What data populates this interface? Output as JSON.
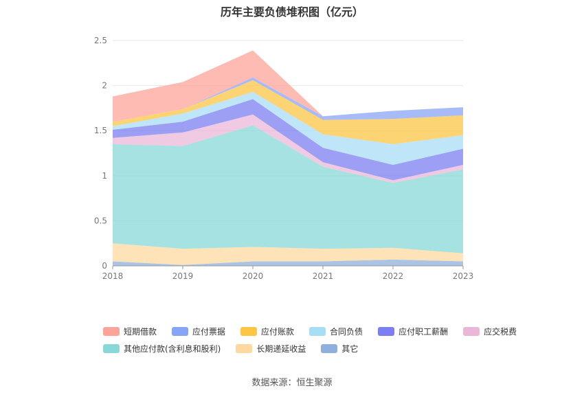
{
  "chart_data": {
    "type": "area",
    "title": "历年主要负债堆积图（亿元）",
    "stacked": true,
    "x": [
      "2018",
      "2019",
      "2020",
      "2021",
      "2022",
      "2023"
    ],
    "ylim": [
      0,
      2.5
    ],
    "yticks": [
      "0",
      "0.5",
      "1",
      "1.5",
      "2",
      "2.5"
    ],
    "grid": true,
    "legend_position": "bottom",
    "series": [
      {
        "name": "其它",
        "color": "#8fb0dc",
        "values": [
          0.05,
          0.01,
          0.05,
          0.05,
          0.07,
          0.05
        ]
      },
      {
        "name": "长期递延收益",
        "color": "#fdd9a0",
        "values": [
          0.2,
          0.18,
          0.16,
          0.14,
          0.13,
          0.09
        ]
      },
      {
        "name": "其他应付款(含利息和股利)",
        "color": "#88d8d8",
        "values": [
          1.1,
          1.14,
          1.35,
          0.91,
          0.72,
          0.93
        ]
      },
      {
        "name": "应交税费",
        "color": "#ebb7d8",
        "values": [
          0.07,
          0.15,
          0.12,
          0.05,
          0.03,
          0.05
        ]
      },
      {
        "name": "应付职工薪酬",
        "color": "#7b7ff0",
        "values": [
          0.09,
          0.12,
          0.17,
          0.16,
          0.17,
          0.18
        ]
      },
      {
        "name": "合同负债",
        "color": "#a8ddf6",
        "values": [
          0.04,
          0.09,
          0.08,
          0.15,
          0.23,
          0.15
        ]
      },
      {
        "name": "应付账款",
        "color": "#fcc545",
        "values": [
          0.05,
          0.05,
          0.13,
          0.16,
          0.28,
          0.22
        ]
      },
      {
        "name": "应付票据",
        "color": "#88a4f5",
        "values": [
          0.0,
          0.0,
          0.03,
          0.04,
          0.09,
          0.09
        ]
      },
      {
        "name": "短期借款",
        "color": "#fca49a",
        "values": [
          0.28,
          0.3,
          0.3,
          0.0,
          0.0,
          0.0
        ]
      }
    ],
    "legend": [
      [
        "短期借款",
        "应付票据",
        "应付账款",
        "合同负债",
        "应付职工薪酬",
        "应交税费"
      ],
      [
        "其他应付款(含利息和股利)",
        "长期递延收益",
        "其它"
      ]
    ]
  },
  "source": "数据来源：恒生聚源"
}
